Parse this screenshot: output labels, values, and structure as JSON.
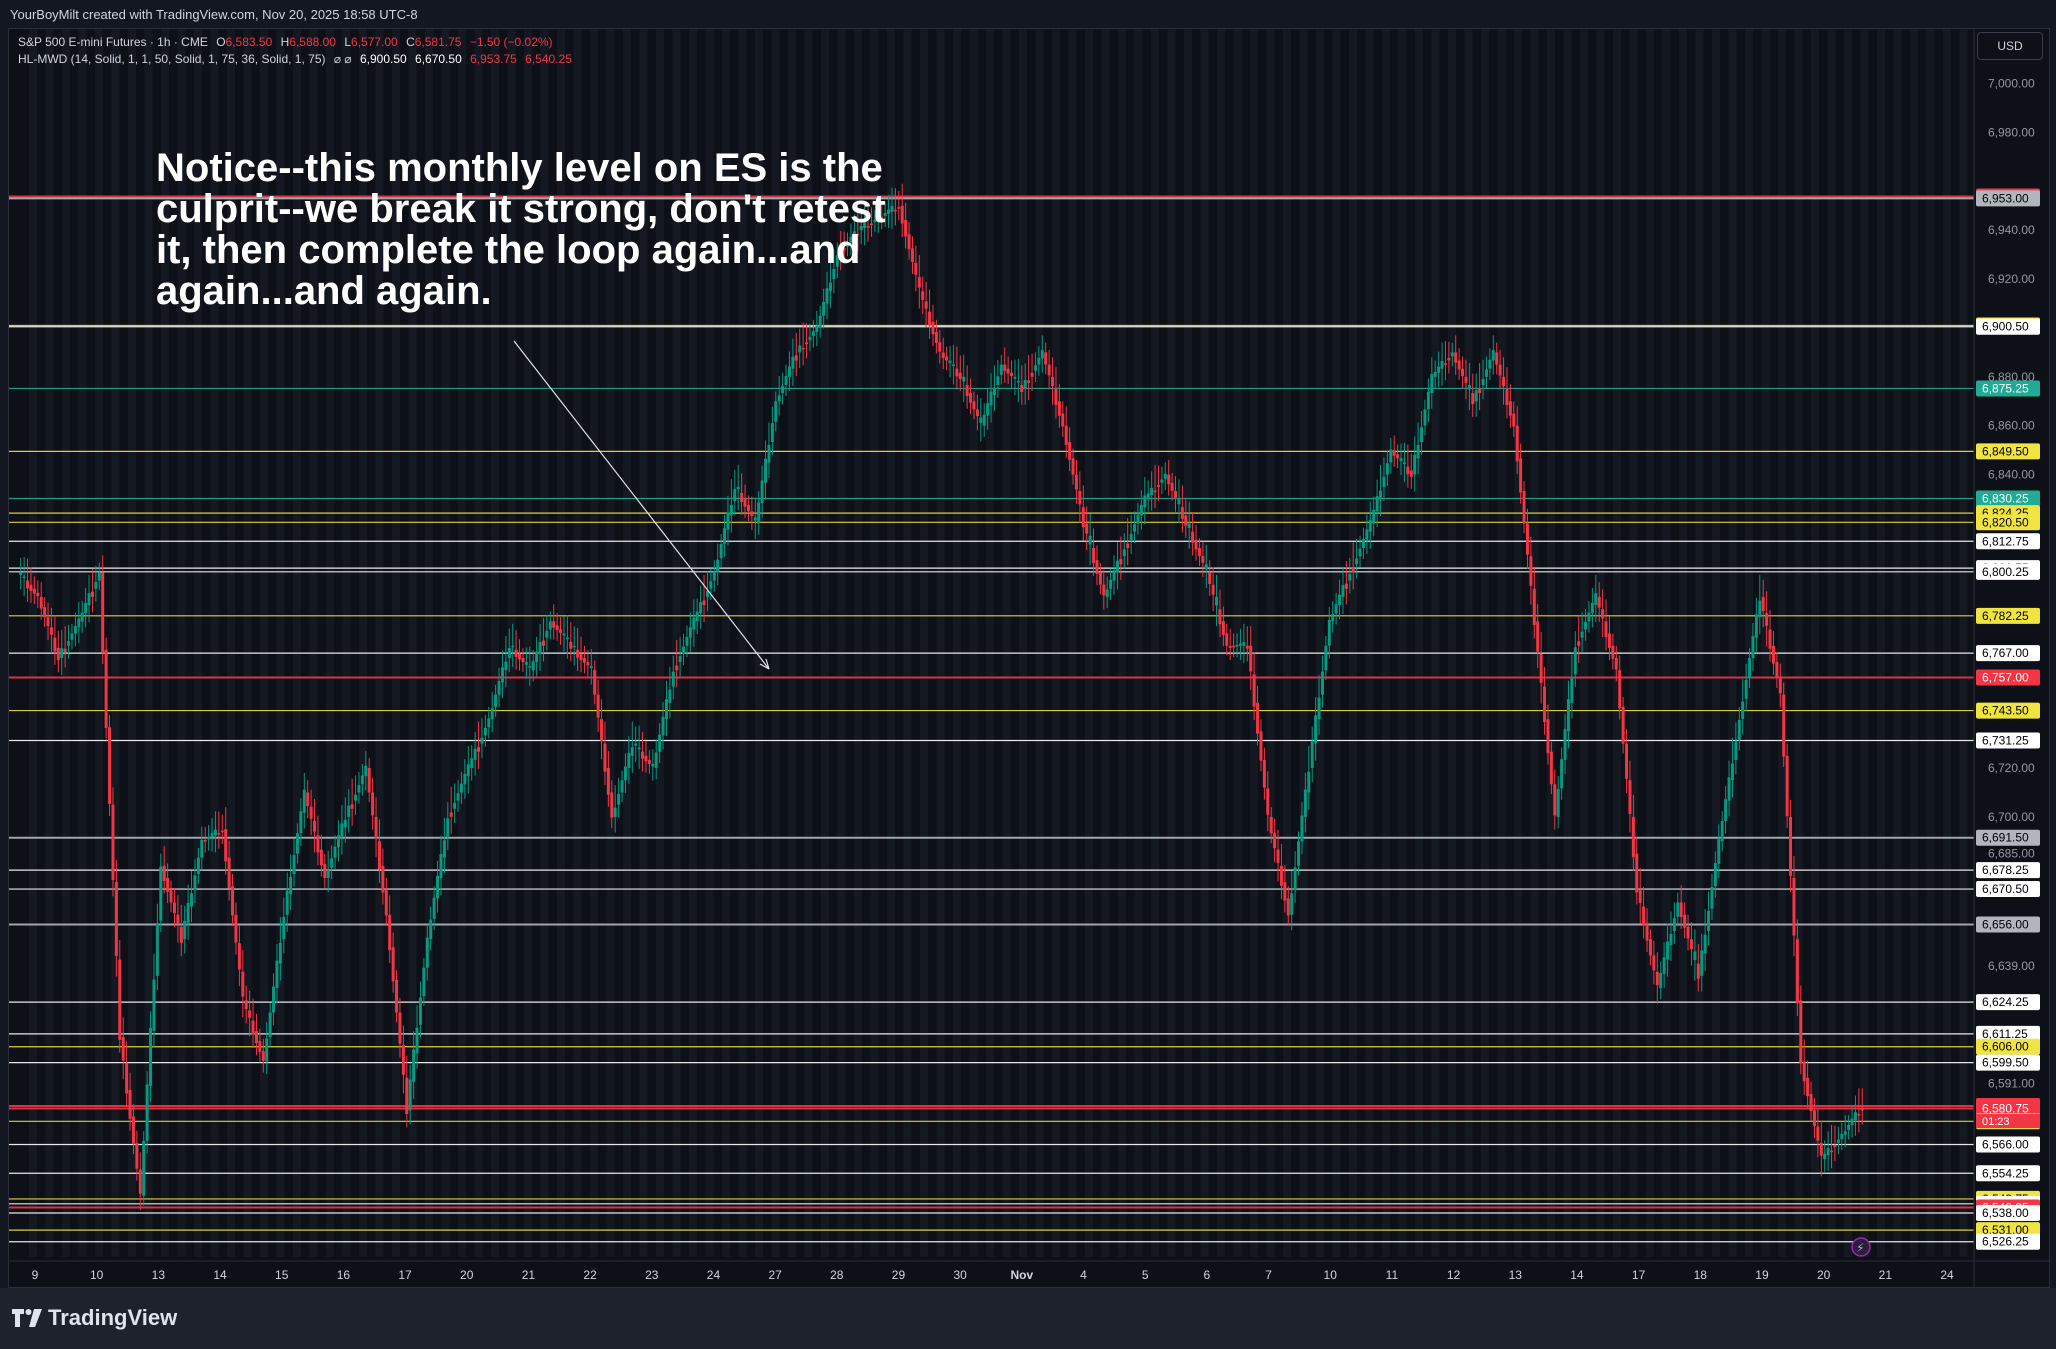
{
  "header": {
    "caption": "YourBoyMilt created with TradingView.com, Nov 20, 2025 18:58 UTC-8"
  },
  "symbol": {
    "name": "S&P 500 E-mini Futures · 1h · CME",
    "o_label": "O",
    "o": "6,583.50",
    "h_label": "H",
    "h": "6,588.00",
    "l_label": "L",
    "l": "6,577.00",
    "c_label": "C",
    "c": "6,581.75",
    "change": "−1.50 (−0.02%)"
  },
  "indicator": {
    "name": "HL-MWD (14, Solid, 1, 1, 50, Solid, 1, 75, 36, Solid, 1, 75)",
    "icons": "⌀  ⌀",
    "values": [
      "6,900.50",
      "6,670.50",
      "6,953.75",
      "6,540.25"
    ]
  },
  "currency_button": "USD",
  "annotation": {
    "text": "Notice--this monthly level on ES is the culprit--we break it strong, don't retest it, then complete the loop again...and again...and again."
  },
  "footer": {
    "brand": "TradingView"
  },
  "colors": {
    "bg": "#0d1016",
    "red": "#f23645",
    "green": "#089981",
    "yellow": "#f0e442",
    "cyan": "#22ab94",
    "white": "#ffffff",
    "gray": "#b2b5be"
  },
  "chart_data": {
    "type": "candlestick",
    "symbol": "ES1!",
    "timeframe": "1h",
    "ylim": [
      6520,
      7010
    ],
    "y_ticks": [
      "6,526.25",
      "6,531.00",
      "6,538.00",
      "6,540.25",
      "6,541.75",
      "6,543.75",
      "6,554.25",
      "6,566.00",
      "6,575.50",
      "6,580.75",
      "6,581.75",
      "6,591.00",
      "6,599.50",
      "6,606.00",
      "6,611.25",
      "6,624.25",
      "6,639.00",
      "6,656.00",
      "6,670.50",
      "6,678.25",
      "6,685.00",
      "6,691.50",
      "6,700.00",
      "6,731.25",
      "6,743.50",
      "6,757.00",
      "6,767.00",
      "6,782.25",
      "6,800.25",
      "6,801.75",
      "6,812.75",
      "6,820.50",
      "6,824.25",
      "6,830.25",
      "6,840.00",
      "6,849.50",
      "6,860.00",
      "6,875.25",
      "6,880.00",
      "6,900.50",
      "6,901.00",
      "6,920.00",
      "6,940.00",
      "6,953.00",
      "6,953.75",
      "6,980.00",
      "7,000.00"
    ],
    "last_price": {
      "value": "6,581.75",
      "countdown": "01:23"
    },
    "x_labels": [
      "9",
      "10",
      "13",
      "14",
      "15",
      "16",
      "17",
      "20",
      "21",
      "22",
      "23",
      "24",
      "27",
      "28",
      "29",
      "30",
      "Nov",
      "4",
      "5",
      "6",
      "7",
      "10",
      "11",
      "12",
      "13",
      "14",
      "17",
      "18",
      "19",
      "20",
      "21",
      "24"
    ],
    "levels": [
      {
        "label": "6,953.75",
        "value": 6953.75,
        "color": "#f23645"
      },
      {
        "label": "6,953.00",
        "value": 6953.0,
        "color": "#b2b5be"
      },
      {
        "label": "6,901.00",
        "value": 6901.0,
        "color": "#f0e442"
      },
      {
        "label": "6,900.50",
        "value": 6900.5,
        "color": "#ffffff"
      },
      {
        "label": "6,875.25",
        "value": 6875.25,
        "color": "#22ab94"
      },
      {
        "label": "6,849.50",
        "value": 6849.5,
        "color": "#f0e442"
      },
      {
        "label": "6,830.25",
        "value": 6830.25,
        "color": "#22ab94"
      },
      {
        "label": "6,824.25",
        "value": 6824.25,
        "color": "#f0e442"
      },
      {
        "label": "6,820.50",
        "value": 6820.5,
        "color": "#f0e442"
      },
      {
        "label": "6,812.75",
        "value": 6812.75,
        "color": "#ffffff"
      },
      {
        "label": "6,801.75",
        "value": 6801.75,
        "color": "#ffffff"
      },
      {
        "label": "6,800.25",
        "value": 6800.25,
        "color": "#ffffff"
      },
      {
        "label": "6,782.25",
        "value": 6782.25,
        "color": "#f0e442"
      },
      {
        "label": "6,767.00",
        "value": 6767.0,
        "color": "#ffffff"
      },
      {
        "label": "6,757.00",
        "value": 6757.0,
        "color": "#f23645"
      },
      {
        "label": "6,743.50",
        "value": 6743.5,
        "color": "#f0e442"
      },
      {
        "label": "6,731.25",
        "value": 6731.25,
        "color": "#ffffff"
      },
      {
        "label": "6,691.50",
        "value": 6691.5,
        "color": "#b2b5be"
      },
      {
        "label": "6,678.25",
        "value": 6678.25,
        "color": "#ffffff"
      },
      {
        "label": "6,670.50",
        "value": 6670.5,
        "color": "#ffffff"
      },
      {
        "label": "6,656.00",
        "value": 6656.0,
        "color": "#b2b5be"
      },
      {
        "label": "6,624.25",
        "value": 6624.25,
        "color": "#ffffff"
      },
      {
        "label": "6,611.25",
        "value": 6611.25,
        "color": "#ffffff"
      },
      {
        "label": "6,606.00",
        "value": 6606.0,
        "color": "#f0e442"
      },
      {
        "label": "6,599.50",
        "value": 6599.5,
        "color": "#ffffff"
      },
      {
        "label": "6,581.75",
        "value": 6581.75,
        "color": "#f23645"
      },
      {
        "label": "6,580.75",
        "value": 6580.75,
        "color": "#f23645"
      },
      {
        "label": "6,575.50",
        "value": 6575.5,
        "color": "#f0e442"
      },
      {
        "label": "6,566.00",
        "value": 6566.0,
        "color": "#ffffff"
      },
      {
        "label": "6,554.25",
        "value": 6554.25,
        "color": "#ffffff"
      },
      {
        "label": "6,543.75",
        "value": 6543.75,
        "color": "#f0e442"
      },
      {
        "label": "6,541.75",
        "value": 6541.75,
        "color": "#ffffff"
      },
      {
        "label": "6,540.25",
        "value": 6540.25,
        "color": "#f23645"
      },
      {
        "label": "6,538.00",
        "value": 6538.0,
        "color": "#ffffff"
      },
      {
        "label": "6,531.00",
        "value": 6531.0,
        "color": "#f0e442"
      },
      {
        "label": "6,526.25",
        "value": 6526.25,
        "color": "#ffffff"
      }
    ],
    "plain_ticks": [
      7000,
      6980,
      6940,
      6920,
      6880,
      6860,
      6840,
      6720,
      6700,
      6685,
      6639,
      6591
    ],
    "price_path": [
      [
        0,
        6800
      ],
      [
        2,
        6790
      ],
      [
        4,
        6765
      ],
      [
        6,
        6780
      ],
      [
        8,
        6800
      ],
      [
        10,
        6610
      ],
      [
        12,
        6545
      ],
      [
        14,
        6680
      ],
      [
        16,
        6650
      ],
      [
        18,
        6690
      ],
      [
        20,
        6695
      ],
      [
        22,
        6625
      ],
      [
        24,
        6600
      ],
      [
        26,
        6660
      ],
      [
        28,
        6710
      ],
      [
        30,
        6675
      ],
      [
        32,
        6700
      ],
      [
        34,
        6720
      ],
      [
        36,
        6660
      ],
      [
        38,
        6580
      ],
      [
        40,
        6650
      ],
      [
        42,
        6700
      ],
      [
        44,
        6720
      ],
      [
        46,
        6740
      ],
      [
        48,
        6770
      ],
      [
        50,
        6760
      ],
      [
        52,
        6780
      ],
      [
        54,
        6770
      ],
      [
        56,
        6760
      ],
      [
        58,
        6700
      ],
      [
        60,
        6730
      ],
      [
        62,
        6720
      ],
      [
        64,
        6760
      ],
      [
        66,
        6780
      ],
      [
        68,
        6800
      ],
      [
        70,
        6835
      ],
      [
        72,
        6820
      ],
      [
        74,
        6870
      ],
      [
        76,
        6890
      ],
      [
        78,
        6900
      ],
      [
        80,
        6930
      ],
      [
        82,
        6940
      ],
      [
        84,
        6945
      ],
      [
        86,
        6950
      ],
      [
        88,
        6915
      ],
      [
        90,
        6890
      ],
      [
        92,
        6880
      ],
      [
        94,
        6860
      ],
      [
        96,
        6885
      ],
      [
        98,
        6875
      ],
      [
        100,
        6890
      ],
      [
        102,
        6860
      ],
      [
        104,
        6820
      ],
      [
        106,
        6790
      ],
      [
        108,
        6810
      ],
      [
        110,
        6830
      ],
      [
        112,
        6840
      ],
      [
        114,
        6820
      ],
      [
        116,
        6800
      ],
      [
        118,
        6770
      ],
      [
        120,
        6770
      ],
      [
        122,
        6700
      ],
      [
        124,
        6660
      ],
      [
        126,
        6720
      ],
      [
        128,
        6780
      ],
      [
        130,
        6800
      ],
      [
        132,
        6820
      ],
      [
        134,
        6850
      ],
      [
        136,
        6840
      ],
      [
        138,
        6880
      ],
      [
        140,
        6890
      ],
      [
        142,
        6870
      ],
      [
        144,
        6890
      ],
      [
        146,
        6860
      ],
      [
        148,
        6780
      ],
      [
        150,
        6700
      ],
      [
        152,
        6770
      ],
      [
        154,
        6790
      ],
      [
        156,
        6760
      ],
      [
        158,
        6670
      ],
      [
        160,
        6630
      ],
      [
        162,
        6665
      ],
      [
        164,
        6635
      ],
      [
        166,
        6690
      ],
      [
        168,
        6740
      ],
      [
        170,
        6790
      ],
      [
        172,
        6750
      ],
      [
        174,
        6600
      ],
      [
        176,
        6560
      ],
      [
        178,
        6570
      ],
      [
        180,
        6582
      ]
    ]
  }
}
